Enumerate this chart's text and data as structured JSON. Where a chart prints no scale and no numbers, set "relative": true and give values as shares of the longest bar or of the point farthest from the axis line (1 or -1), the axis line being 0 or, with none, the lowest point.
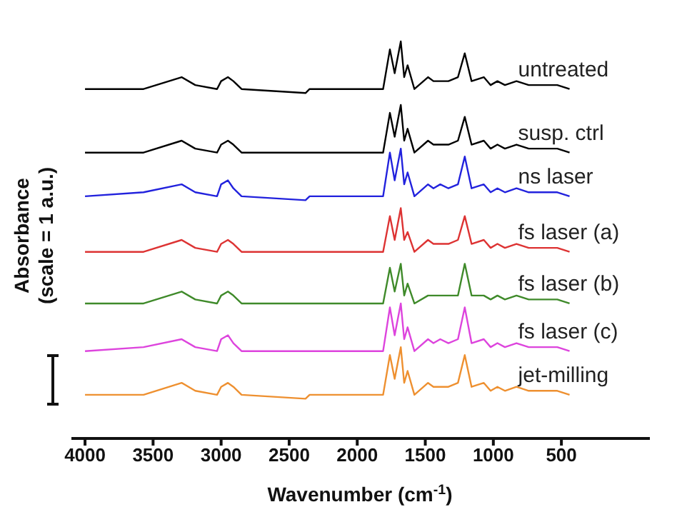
{
  "chart_data": {
    "type": "line",
    "relative": true,
    "xlabel": "Wavenumber (cm$^{-1}$)",
    "ylabel": "Absorbance\n(scale = 1 a.u.)",
    "x": [
      4000,
      3570,
      3290,
      3190,
      3030,
      3000,
      2950,
      2910,
      2850,
      2380,
      2350,
      1810,
      1760,
      1725,
      1680,
      1655,
      1630,
      1580,
      1480,
      1440,
      1390,
      1330,
      1260,
      1210,
      1160,
      1070,
      1020,
      970,
      915,
      830,
      740,
      530,
      440
    ],
    "xlim": [
      4100,
      -150
    ],
    "xticks": [
      4000,
      3500,
      3000,
      2500,
      2000,
      1500,
      1000,
      500
    ],
    "series": [
      {
        "name": "untreated",
        "color": "#000000",
        "values": [
          0.88,
          0.88,
          0.91,
          0.89,
          0.88,
          0.9,
          0.91,
          0.9,
          0.88,
          0.87,
          0.88,
          0.88,
          0.98,
          0.92,
          1.0,
          0.91,
          0.94,
          0.88,
          0.91,
          0.9,
          0.9,
          0.9,
          0.91,
          0.97,
          0.9,
          0.91,
          0.89,
          0.9,
          0.89,
          0.9,
          0.89,
          0.89,
          0.88
        ]
      },
      {
        "name": "susp. ctrl",
        "color": "#000000",
        "values": [
          0.72,
          0.72,
          0.75,
          0.73,
          0.72,
          0.74,
          0.75,
          0.74,
          0.72,
          0.72,
          0.72,
          0.72,
          0.82,
          0.76,
          0.84,
          0.75,
          0.78,
          0.72,
          0.75,
          0.74,
          0.74,
          0.74,
          0.75,
          0.81,
          0.74,
          0.75,
          0.73,
          0.74,
          0.73,
          0.74,
          0.73,
          0.73,
          0.72
        ]
      },
      {
        "name": "ns laser",
        "color": "#2222dd",
        "values": [
          0.61,
          0.62,
          0.64,
          0.62,
          0.61,
          0.64,
          0.65,
          0.63,
          0.61,
          0.6,
          0.61,
          0.61,
          0.72,
          0.65,
          0.73,
          0.64,
          0.67,
          0.61,
          0.64,
          0.63,
          0.64,
          0.63,
          0.64,
          0.71,
          0.63,
          0.64,
          0.62,
          0.63,
          0.62,
          0.63,
          0.62,
          0.62,
          0.61
        ]
      },
      {
        "name": "fs laser (a)",
        "color": "#dd3333",
        "values": [
          0.47,
          0.47,
          0.5,
          0.48,
          0.47,
          0.49,
          0.5,
          0.49,
          0.47,
          0.47,
          0.47,
          0.47,
          0.56,
          0.5,
          0.58,
          0.5,
          0.52,
          0.47,
          0.5,
          0.49,
          0.49,
          0.49,
          0.5,
          0.56,
          0.49,
          0.5,
          0.48,
          0.49,
          0.48,
          0.49,
          0.48,
          0.48,
          0.47
        ]
      },
      {
        "name": "fs laser (b)",
        "color": "#3f8a2a",
        "values": [
          0.34,
          0.34,
          0.37,
          0.35,
          0.34,
          0.36,
          0.37,
          0.36,
          0.34,
          0.34,
          0.34,
          0.34,
          0.43,
          0.37,
          0.44,
          0.36,
          0.39,
          0.34,
          0.36,
          0.36,
          0.36,
          0.36,
          0.36,
          0.44,
          0.36,
          0.36,
          0.35,
          0.36,
          0.35,
          0.36,
          0.35,
          0.35,
          0.34
        ]
      },
      {
        "name": "fs laser (c)",
        "color": "#dd44dd",
        "values": [
          0.22,
          0.23,
          0.25,
          0.23,
          0.22,
          0.25,
          0.26,
          0.24,
          0.22,
          0.22,
          0.22,
          0.22,
          0.33,
          0.26,
          0.34,
          0.25,
          0.28,
          0.22,
          0.25,
          0.24,
          0.25,
          0.24,
          0.25,
          0.33,
          0.24,
          0.25,
          0.23,
          0.24,
          0.23,
          0.24,
          0.23,
          0.23,
          0.22
        ]
      },
      {
        "name": "jet-milling",
        "color": "#ee9030",
        "values": [
          0.11,
          0.11,
          0.14,
          0.12,
          0.11,
          0.13,
          0.14,
          0.13,
          0.11,
          0.1,
          0.11,
          0.11,
          0.21,
          0.15,
          0.23,
          0.14,
          0.17,
          0.11,
          0.14,
          0.13,
          0.13,
          0.13,
          0.14,
          0.21,
          0.13,
          0.14,
          0.12,
          0.13,
          0.12,
          0.13,
          0.12,
          0.12,
          0.11
        ]
      }
    ]
  }
}
